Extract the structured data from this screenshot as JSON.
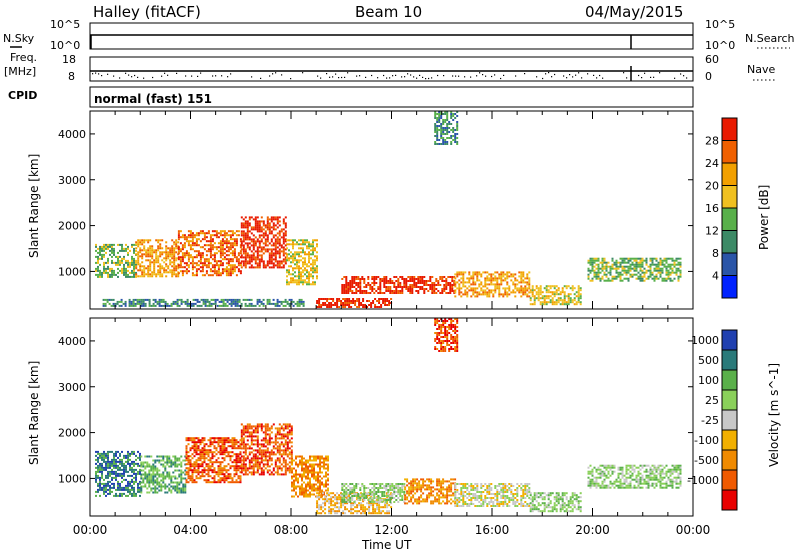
{
  "header": {
    "station": "Halley (fitACF)",
    "beam": "Beam 10",
    "date": "04/May/2015"
  },
  "strip1": {
    "left_label": "N.Sky",
    "right_label": "N.Search",
    "left_ticks": [
      "10^5",
      "10^0"
    ],
    "right_ticks": [
      "10^5",
      "10^0"
    ]
  },
  "strip2": {
    "left_label_1": "Freq.",
    "left_label_2": "[MHz]",
    "right_label": "Nave",
    "left_ticks": [
      "18",
      "8"
    ],
    "right_ticks": [
      "60",
      "0"
    ]
  },
  "cpid": {
    "label": "CPID",
    "text": "normal (fast) 151"
  },
  "colors": {
    "power": [
      "#0022ff",
      "#2a55a8",
      "#3c8a66",
      "#58b04a",
      "#f0c020",
      "#f2a000",
      "#f06000",
      "#e81a00"
    ],
    "velocity": [
      "#e80000",
      "#f05a00",
      "#f08a00",
      "#f2b000",
      "#c8c8c8",
      "#8ad05a",
      "#5ab04a",
      "#2a7a7a",
      "#2040b0"
    ]
  },
  "chart_data": [
    {
      "type": "heatmap",
      "title": "",
      "xlabel": "",
      "ylabel": "Slant Range [km]",
      "x_range": [
        "00:00",
        "24:00"
      ],
      "ylim": [
        180,
        4500
      ],
      "x_ticks": [
        "00:00",
        "04:00",
        "08:00",
        "12:00",
        "16:00",
        "20:00",
        "00:00"
      ],
      "y_ticks": [
        1000,
        2000,
        3000,
        4000
      ],
      "colorbar": {
        "label": "Power [dB]",
        "ticks": [
          "4",
          "8",
          "12",
          "16",
          "20",
          "24",
          "28"
        ],
        "range": [
          0,
          32
        ]
      },
      "regions": [
        {
          "t0": 0.2,
          "t1": 1.8,
          "r0": 900,
          "r1": 1600,
          "level": 3
        },
        {
          "t0": 1.8,
          "t1": 3.5,
          "r0": 900,
          "r1": 1700,
          "level": 5
        },
        {
          "t0": 3.5,
          "t1": 6.0,
          "r0": 900,
          "r1": 1900,
          "level": 6
        },
        {
          "t0": 6.0,
          "t1": 7.8,
          "r0": 1100,
          "r1": 2200,
          "level": 7
        },
        {
          "t0": 7.8,
          "t1": 9.0,
          "r0": 700,
          "r1": 1700,
          "level": 4
        },
        {
          "t0": 9.0,
          "t1": 12.0,
          "r0": 220,
          "r1": 420,
          "level": 7
        },
        {
          "t0": 10.0,
          "t1": 14.5,
          "r0": 550,
          "r1": 900,
          "level": 7
        },
        {
          "t0": 14.5,
          "t1": 17.5,
          "r0": 450,
          "r1": 1000,
          "level": 5
        },
        {
          "t0": 17.5,
          "t1": 19.5,
          "r0": 300,
          "r1": 700,
          "level": 4
        },
        {
          "t0": 19.8,
          "t1": 23.5,
          "r0": 800,
          "r1": 1300,
          "level": 3
        },
        {
          "t0": 13.7,
          "t1": 14.6,
          "r0": 3800,
          "r1": 4500,
          "level": 2
        },
        {
          "t0": 0.5,
          "t1": 8.5,
          "r0": 250,
          "r1": 400,
          "level": 2
        }
      ]
    },
    {
      "type": "heatmap",
      "title": "",
      "xlabel": "Time UT",
      "ylabel": "Slant Range [km]",
      "x_range": [
        "00:00",
        "24:00"
      ],
      "ylim": [
        180,
        4500
      ],
      "x_ticks": [
        "00:00",
        "04:00",
        "08:00",
        "12:00",
        "16:00",
        "20:00",
        "00:00"
      ],
      "y_ticks": [
        1000,
        2000,
        3000,
        4000
      ],
      "colorbar": {
        "label": "Velocity [m s^-1]",
        "ticks": [
          "1000",
          "500",
          "100",
          "25",
          "-25",
          "-100",
          "-500",
          "-1000"
        ]
      },
      "regions": [
        {
          "t0": 0.2,
          "t1": 2.0,
          "r0": 600,
          "r1": 1600,
          "level": 7
        },
        {
          "t0": 2.0,
          "t1": 3.8,
          "r0": 700,
          "r1": 1500,
          "level": 6
        },
        {
          "t0": 3.8,
          "t1": 6.0,
          "r0": 900,
          "r1": 1900,
          "level": 1
        },
        {
          "t0": 6.0,
          "t1": 8.0,
          "r0": 1100,
          "r1": 2200,
          "level": 1
        },
        {
          "t0": 8.0,
          "t1": 9.5,
          "r0": 600,
          "r1": 1500,
          "level": 2
        },
        {
          "t0": 9.0,
          "t1": 12.0,
          "r0": 250,
          "r1": 700,
          "level": 3
        },
        {
          "t0": 10.0,
          "t1": 12.5,
          "r0": 500,
          "r1": 900,
          "level": 5
        },
        {
          "t0": 12.5,
          "t1": 14.5,
          "r0": 450,
          "r1": 1000,
          "level": 2
        },
        {
          "t0": 14.5,
          "t1": 17.5,
          "r0": 400,
          "r1": 900,
          "level": 4
        },
        {
          "t0": 17.5,
          "t1": 19.5,
          "r0": 300,
          "r1": 700,
          "level": 5
        },
        {
          "t0": 19.8,
          "t1": 23.5,
          "r0": 800,
          "r1": 1300,
          "level": 5
        },
        {
          "t0": 13.7,
          "t1": 14.6,
          "r0": 3800,
          "r1": 4500,
          "level": 1
        }
      ]
    }
  ]
}
